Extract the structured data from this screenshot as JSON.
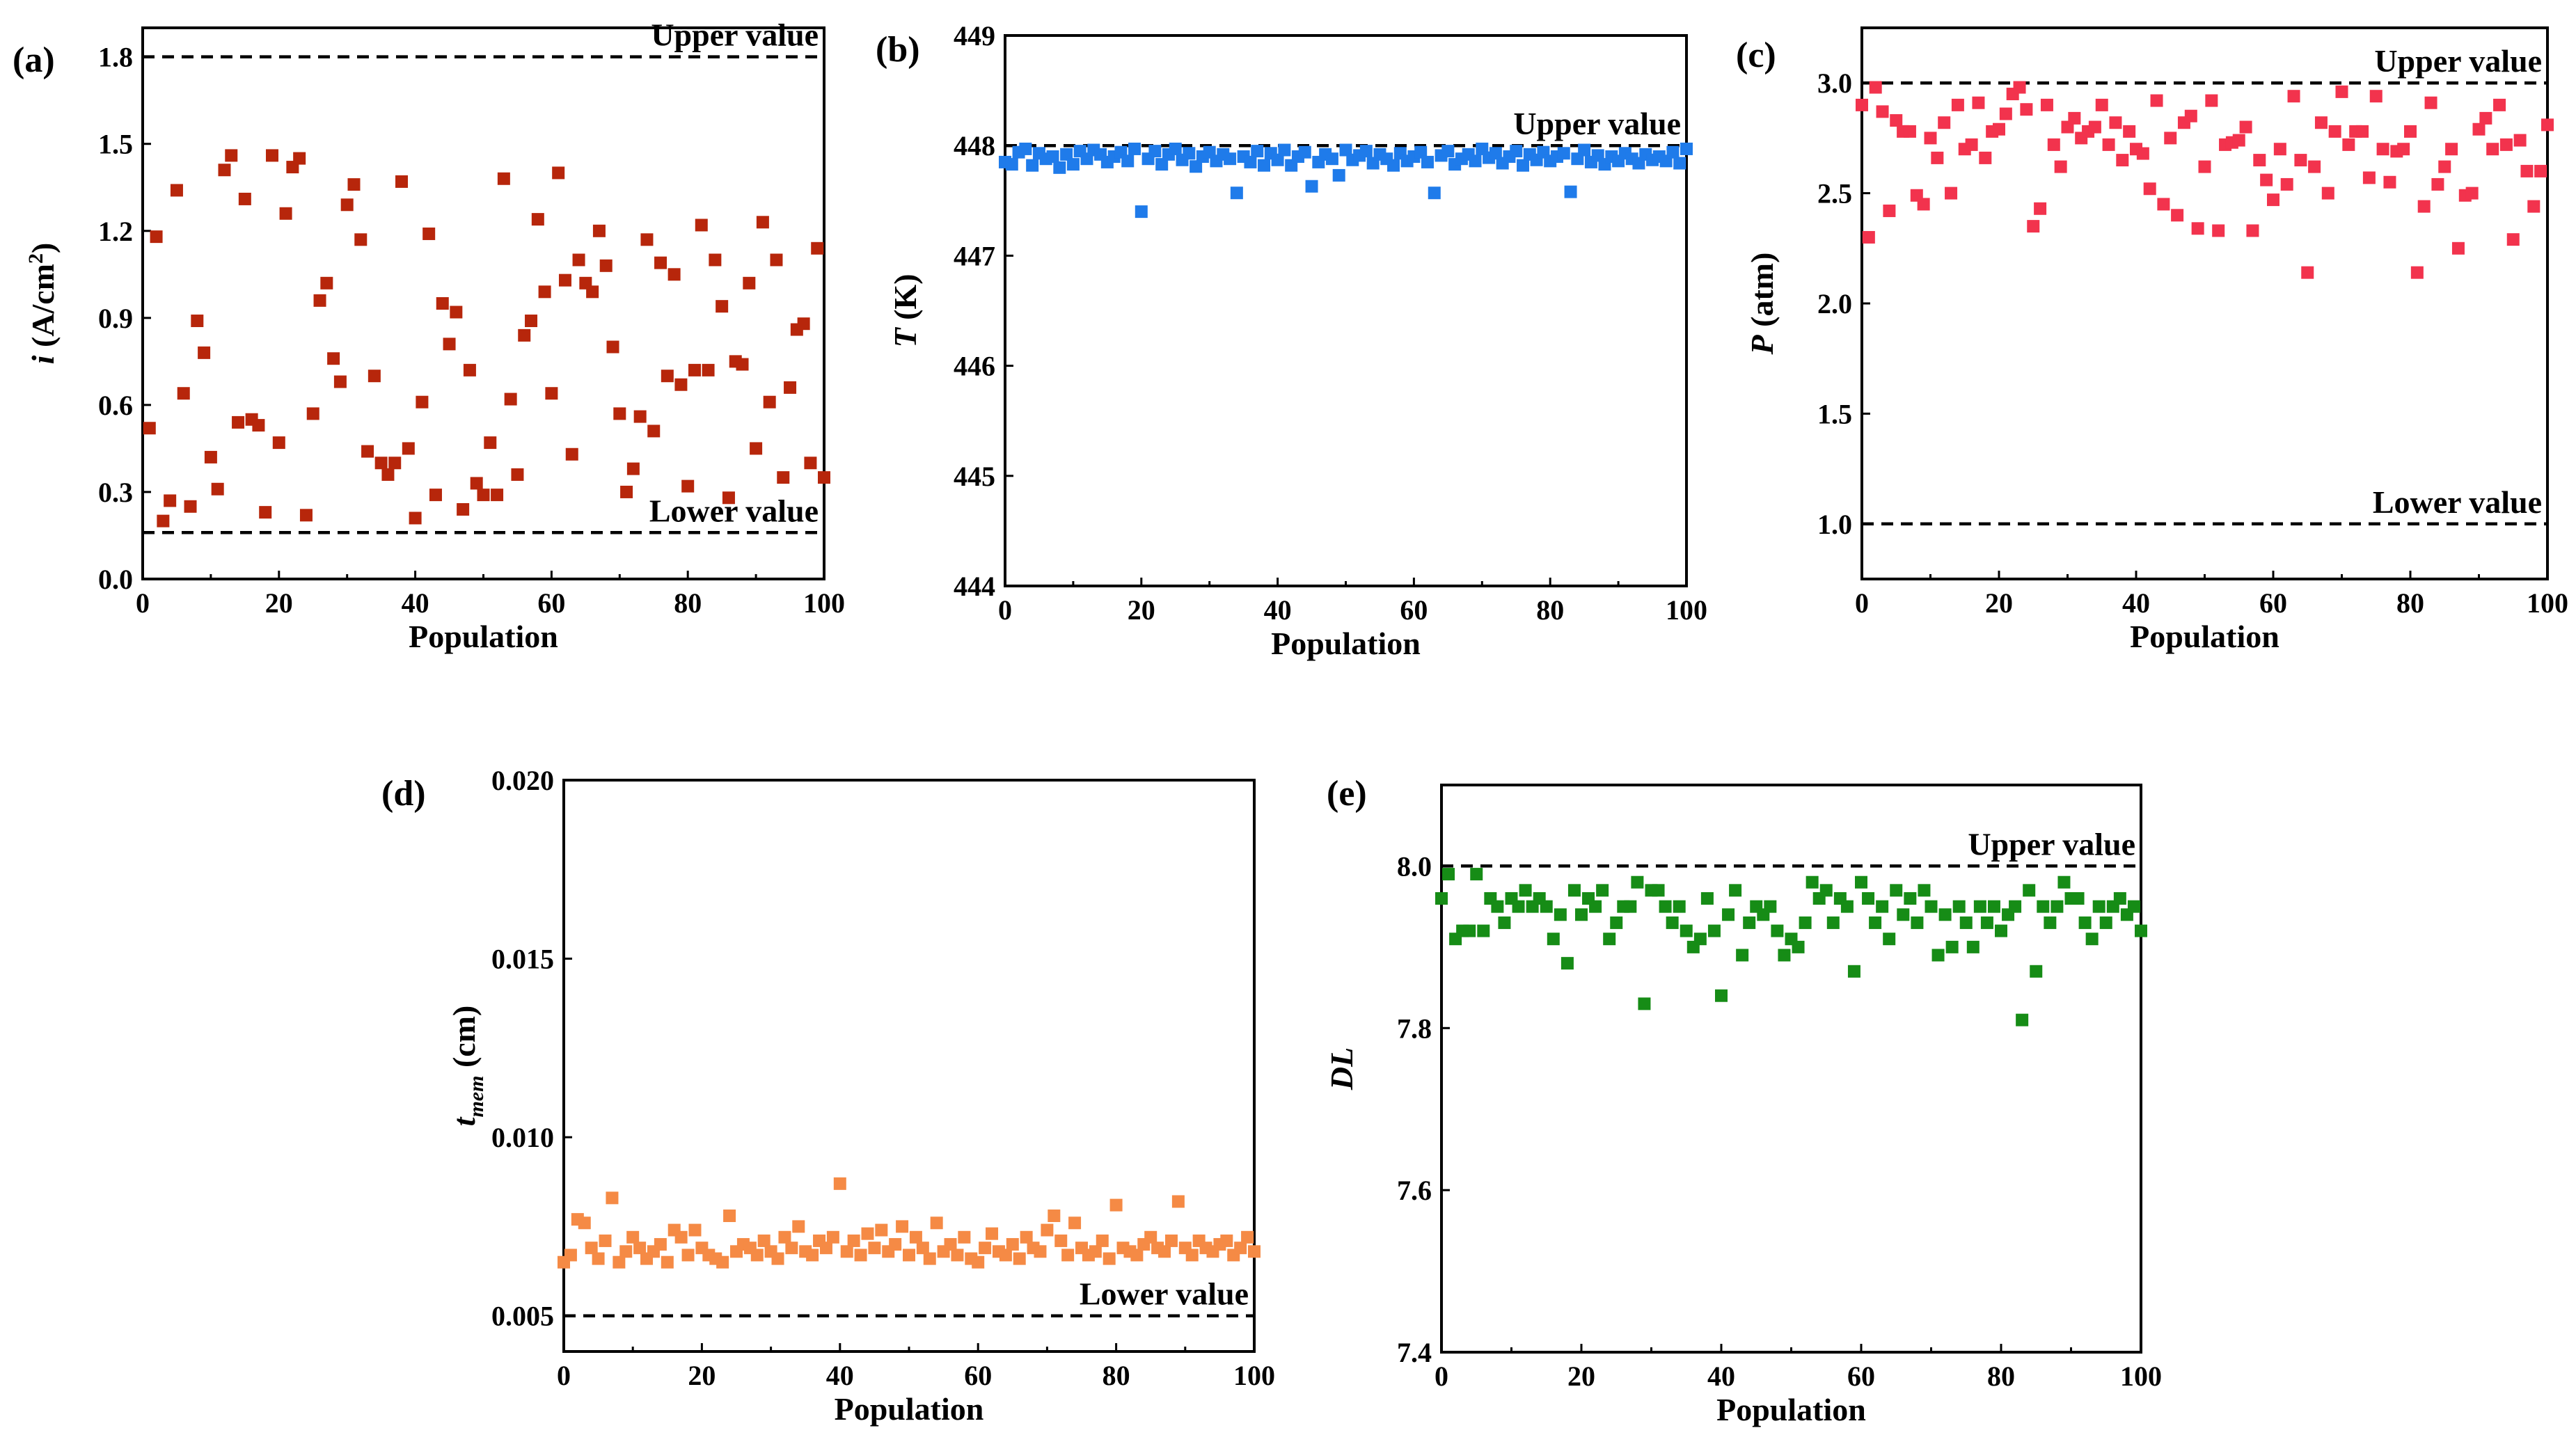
{
  "chart_data": [
    {
      "id": "a",
      "type": "scatter",
      "panel_label": "(a)",
      "xlabel": "Population",
      "ylabel_main": "i",
      "ylabel_rest": " (A/cm",
      "ylabel_sup": "2",
      "ylabel_end": ")",
      "xlim": [
        0,
        100
      ],
      "ylim": [
        0,
        1.9
      ],
      "x_ticks": [
        "0",
        "20",
        "40",
        "60",
        "80",
        "100"
      ],
      "y_ticks": [
        "0.0",
        "0.3",
        "0.6",
        "0.9",
        "1.2",
        "1.5",
        "1.8"
      ],
      "color": "#B7260B",
      "reference_lines": [
        {
          "label": "Upper value",
          "value": 1.8,
          "label_position": "above-right"
        },
        {
          "label": "Lower value",
          "value": 0.16,
          "label_position": "above-right"
        }
      ],
      "x": [
        1,
        2,
        3,
        4,
        5,
        6,
        7,
        8,
        9,
        10,
        11,
        12,
        13,
        14,
        15,
        16,
        17,
        18,
        19,
        20,
        21,
        22,
        23,
        24,
        25,
        26,
        27,
        28,
        29,
        30,
        31,
        32,
        33,
        34,
        35,
        36,
        37,
        38,
        39,
        40,
        41,
        42,
        43,
        44,
        45,
        46,
        47,
        48,
        49,
        50,
        51,
        52,
        53,
        54,
        55,
        56,
        57,
        58,
        59,
        60,
        61,
        62,
        63,
        64,
        65,
        66,
        67,
        68,
        69,
        70,
        71,
        72,
        73,
        74,
        75,
        76,
        77,
        78,
        79,
        80,
        81,
        82,
        83,
        84,
        85,
        86,
        87,
        88,
        89,
        90,
        91,
        92,
        93,
        94,
        95,
        96,
        97,
        98,
        99,
        100
      ],
      "values": [
        0.52,
        1.18,
        0.2,
        0.27,
        1.34,
        0.64,
        0.25,
        0.89,
        0.78,
        0.42,
        0.31,
        1.41,
        1.46,
        0.54,
        1.31,
        0.55,
        0.53,
        0.23,
        1.46,
        0.47,
        1.26,
        1.42,
        1.45,
        0.22,
        0.57,
        0.96,
        1.02,
        0.76,
        0.68,
        1.29,
        1.36,
        1.17,
        0.44,
        0.7,
        0.4,
        0.36,
        0.4,
        1.37,
        0.45,
        0.21,
        0.61,
        1.19,
        0.29,
        0.95,
        0.81,
        0.92,
        0.24,
        0.72,
        0.33,
        0.29,
        0.47,
        0.29,
        1.38,
        0.62,
        0.36,
        0.84,
        0.89,
        1.24,
        0.99,
        0.64,
        1.4,
        1.03,
        0.43,
        1.1,
        1.02,
        0.99,
        1.2,
        1.08,
        0.8,
        0.57,
        0.3,
        0.38,
        0.56,
        1.17,
        0.51,
        1.09,
        0.7,
        1.05,
        0.67,
        0.32,
        0.72,
        1.22,
        0.72,
        1.1,
        0.94,
        0.28,
        0.75,
        0.74,
        1.02,
        0.45,
        1.23,
        0.61,
        1.1,
        0.35,
        0.66,
        0.86,
        0.88,
        0.4,
        1.14,
        0.35
      ]
    },
    {
      "id": "b",
      "type": "scatter",
      "panel_label": "(b)",
      "xlabel": "Population",
      "ylabel_main": "T",
      "ylabel_rest": " (K)",
      "xlim": [
        0,
        100
      ],
      "ylim": [
        444,
        449
      ],
      "x_ticks": [
        "0",
        "20",
        "40",
        "60",
        "80",
        "100"
      ],
      "y_ticks": [
        "444",
        "445",
        "446",
        "447",
        "448",
        "449"
      ],
      "color": "#1F7BEA",
      "reference_lines": [
        {
          "label": "Upper value",
          "value": 448,
          "label_position": "above-right"
        }
      ],
      "x": [
        0,
        1,
        2,
        3,
        4,
        5,
        6,
        7,
        8,
        9,
        10,
        11,
        12,
        13,
        14,
        15,
        16,
        17,
        18,
        19,
        20,
        21,
        22,
        23,
        24,
        25,
        26,
        27,
        28,
        29,
        30,
        31,
        32,
        33,
        34,
        35,
        36,
        37,
        38,
        39,
        40,
        41,
        42,
        43,
        44,
        45,
        46,
        47,
        48,
        49,
        50,
        51,
        52,
        53,
        54,
        55,
        56,
        57,
        58,
        59,
        60,
        61,
        62,
        63,
        64,
        65,
        66,
        67,
        68,
        69,
        70,
        71,
        72,
        73,
        74,
        75,
        76,
        77,
        78,
        79,
        80,
        81,
        82,
        83,
        84,
        85,
        86,
        87,
        88,
        89,
        90,
        91,
        92,
        93,
        94,
        95,
        96,
        97,
        98,
        99,
        100
      ],
      "values": [
        447.85,
        447.83,
        447.94,
        447.97,
        447.82,
        447.93,
        447.88,
        447.9,
        447.8,
        447.92,
        447.83,
        447.95,
        447.88,
        447.96,
        447.92,
        447.85,
        447.9,
        447.94,
        447.86,
        447.97,
        447.4,
        447.88,
        447.95,
        447.83,
        447.92,
        447.97,
        447.87,
        447.93,
        447.81,
        447.9,
        447.94,
        447.86,
        447.92,
        447.88,
        447.57,
        447.9,
        447.85,
        447.95,
        447.82,
        447.93,
        447.87,
        447.96,
        447.82,
        447.9,
        447.94,
        447.63,
        447.85,
        447.92,
        447.88,
        447.73,
        447.96,
        447.87,
        447.91,
        447.95,
        447.84,
        447.92,
        447.88,
        447.82,
        447.93,
        447.86,
        447.9,
        447.94,
        447.85,
        447.57,
        447.91,
        447.95,
        447.83,
        447.88,
        447.92,
        447.86,
        447.97,
        447.89,
        447.93,
        447.84,
        447.9,
        447.95,
        447.82,
        447.92,
        447.87,
        447.94,
        447.86,
        447.9,
        447.93,
        447.58,
        447.88,
        447.96,
        447.85,
        447.91,
        447.83,
        447.9,
        447.86,
        447.93,
        447.88,
        447.84,
        447.92,
        447.87,
        447.9,
        447.86,
        447.94,
        447.84,
        447.97
      ]
    },
    {
      "id": "c",
      "type": "scatter",
      "panel_label": "(c)",
      "xlabel": "Population",
      "ylabel_main": "P",
      "ylabel_rest": " (atm)",
      "xlim": [
        0,
        100
      ],
      "ylim": [
        0.75,
        3.25
      ],
      "x_ticks": [
        "0",
        "20",
        "40",
        "60",
        "80",
        "100"
      ],
      "y_ticks": [
        "1.0",
        "1.5",
        "2.0",
        "2.5",
        "3.0"
      ],
      "color": "#F2334D",
      "reference_lines": [
        {
          "label": "Upper value",
          "value": 3.0,
          "label_position": "above-right"
        },
        {
          "label": "Lower value",
          "value": 1.0,
          "label_position": "above-right"
        }
      ],
      "x": [
        0,
        1,
        2,
        3,
        4,
        5,
        6,
        7,
        8,
        9,
        10,
        11,
        12,
        13,
        14,
        15,
        16,
        17,
        18,
        19,
        20,
        21,
        22,
        23,
        24,
        25,
        26,
        27,
        28,
        29,
        30,
        31,
        32,
        33,
        34,
        35,
        36,
        37,
        38,
        39,
        40,
        41,
        42,
        43,
        44,
        45,
        46,
        47,
        48,
        49,
        50,
        51,
        52,
        53,
        54,
        55,
        56,
        57,
        58,
        59,
        60,
        61,
        62,
        63,
        64,
        65,
        66,
        67,
        68,
        69,
        70,
        71,
        72,
        73,
        74,
        75,
        76,
        77,
        78,
        79,
        80,
        81,
        82,
        83,
        84,
        85,
        86,
        87,
        88,
        89,
        90,
        91,
        92,
        93,
        94,
        95,
        96,
        97,
        98,
        99,
        100
      ],
      "values": [
        2.9,
        2.3,
        2.98,
        2.87,
        2.42,
        2.83,
        2.78,
        2.78,
        2.49,
        2.45,
        2.75,
        2.66,
        2.82,
        2.5,
        2.9,
        2.7,
        2.72,
        2.91,
        2.66,
        2.78,
        2.79,
        2.86,
        2.95,
        2.98,
        2.88,
        2.35,
        2.43,
        2.9,
        2.72,
        2.62,
        2.8,
        2.84,
        2.75,
        2.78,
        2.8,
        2.9,
        2.72,
        2.82,
        2.65,
        2.78,
        2.7,
        2.68,
        2.52,
        2.92,
        2.45,
        2.75,
        2.4,
        2.82,
        2.85,
        2.34,
        2.62,
        2.92,
        2.33,
        2.72,
        2.73,
        2.74,
        2.8,
        2.33,
        2.65,
        2.56,
        2.47,
        2.7,
        2.54,
        2.94,
        2.65,
        2.14,
        2.62,
        2.82,
        2.5,
        2.78,
        2.96,
        2.72,
        2.78,
        2.78,
        2.57,
        2.94,
        2.7,
        2.55,
        2.69,
        2.7,
        2.78,
        2.14,
        2.44,
        2.91,
        2.54,
        2.62,
        2.7,
        2.25,
        2.49,
        2.5,
        2.79,
        2.84,
        2.7,
        2.9,
        2.72,
        2.29,
        2.74,
        2.6,
        2.44,
        2.6,
        2.81
      ]
    },
    {
      "id": "d",
      "type": "scatter",
      "panel_label": "(d)",
      "xlabel": "Population",
      "ylabel_main": "t",
      "ylabel_sub": "mem",
      "ylabel_rest": " (cm)",
      "xlim": [
        0,
        100
      ],
      "ylim": [
        0.004,
        0.02
      ],
      "x_ticks": [
        "0",
        "20",
        "40",
        "60",
        "80",
        "100"
      ],
      "y_ticks": [
        "0.005",
        "0.010",
        "0.015",
        "0.020"
      ],
      "color": "#F58A45",
      "reference_lines": [
        {
          "label": "Lower value",
          "value": 0.005,
          "label_position": "above-right"
        }
      ],
      "x": [
        0,
        1,
        2,
        3,
        4,
        5,
        6,
        7,
        8,
        9,
        10,
        11,
        12,
        13,
        14,
        15,
        16,
        17,
        18,
        19,
        20,
        21,
        22,
        23,
        24,
        25,
        26,
        27,
        28,
        29,
        30,
        31,
        32,
        33,
        34,
        35,
        36,
        37,
        38,
        39,
        40,
        41,
        42,
        43,
        44,
        45,
        46,
        47,
        48,
        49,
        50,
        51,
        52,
        53,
        54,
        55,
        56,
        57,
        58,
        59,
        60,
        61,
        62,
        63,
        64,
        65,
        66,
        67,
        68,
        69,
        70,
        71,
        72,
        73,
        74,
        75,
        76,
        77,
        78,
        79,
        80,
        81,
        82,
        83,
        84,
        85,
        86,
        87,
        88,
        89,
        90,
        91,
        92,
        93,
        94,
        95,
        96,
        97,
        98,
        99,
        100
      ],
      "values": [
        0.0065,
        0.0067,
        0.0077,
        0.0076,
        0.0069,
        0.0066,
        0.0071,
        0.0083,
        0.0065,
        0.0068,
        0.0072,
        0.0069,
        0.0066,
        0.0068,
        0.007,
        0.0065,
        0.0074,
        0.0072,
        0.0067,
        0.0074,
        0.0069,
        0.0067,
        0.0066,
        0.0065,
        0.0078,
        0.0068,
        0.007,
        0.0069,
        0.0067,
        0.0071,
        0.0068,
        0.0066,
        0.0072,
        0.0069,
        0.0075,
        0.0068,
        0.0067,
        0.0071,
        0.0069,
        0.0072,
        0.0087,
        0.0068,
        0.0071,
        0.0067,
        0.0073,
        0.0069,
        0.0074,
        0.0068,
        0.007,
        0.0075,
        0.0067,
        0.0072,
        0.0069,
        0.0066,
        0.0076,
        0.0068,
        0.007,
        0.0067,
        0.0072,
        0.0066,
        0.0065,
        0.0069,
        0.0073,
        0.0068,
        0.0067,
        0.007,
        0.0066,
        0.0072,
        0.0069,
        0.0068,
        0.0074,
        0.0078,
        0.0071,
        0.0067,
        0.0076,
        0.0069,
        0.0067,
        0.0068,
        0.0071,
        0.0066,
        0.0081,
        0.0069,
        0.0068,
        0.0067,
        0.007,
        0.0072,
        0.0069,
        0.0068,
        0.0071,
        0.0082,
        0.0069,
        0.0067,
        0.0071,
        0.0069,
        0.0068,
        0.007,
        0.0071,
        0.0067,
        0.0069,
        0.0072,
        0.0068
      ]
    },
    {
      "id": "e",
      "type": "scatter",
      "panel_label": "(e)",
      "xlabel": "Population",
      "ylabel_main": "DL",
      "ylabel_rest": "",
      "xlim": [
        0,
        100
      ],
      "ylim": [
        7.4,
        8.1
      ],
      "x_ticks": [
        "0",
        "20",
        "40",
        "60",
        "80",
        "100"
      ],
      "y_ticks": [
        "7.4",
        "7.6",
        "7.8",
        "8.0"
      ],
      "color": "#168C16",
      "reference_lines": [
        {
          "label": "Upper value",
          "value": 8.0,
          "label_position": "above-right"
        }
      ],
      "x": [
        0,
        1,
        2,
        3,
        4,
        5,
        6,
        7,
        8,
        9,
        10,
        11,
        12,
        13,
        14,
        15,
        16,
        17,
        18,
        19,
        20,
        21,
        22,
        23,
        24,
        25,
        26,
        27,
        28,
        29,
        30,
        31,
        32,
        33,
        34,
        35,
        36,
        37,
        38,
        39,
        40,
        41,
        42,
        43,
        44,
        45,
        46,
        47,
        48,
        49,
        50,
        51,
        52,
        53,
        54,
        55,
        56,
        57,
        58,
        59,
        60,
        61,
        62,
        63,
        64,
        65,
        66,
        67,
        68,
        69,
        70,
        71,
        72,
        73,
        74,
        75,
        76,
        77,
        78,
        79,
        80,
        81,
        82,
        83,
        84,
        85,
        86,
        87,
        88,
        89,
        90,
        91,
        92,
        93,
        94,
        95,
        96,
        97,
        98,
        99,
        100
      ],
      "values": [
        7.96,
        7.99,
        7.91,
        7.92,
        7.92,
        7.99,
        7.92,
        7.96,
        7.95,
        7.93,
        7.96,
        7.95,
        7.97,
        7.95,
        7.96,
        7.95,
        7.91,
        7.94,
        7.88,
        7.97,
        7.94,
        7.96,
        7.95,
        7.97,
        7.91,
        7.93,
        7.95,
        7.95,
        7.98,
        7.83,
        7.97,
        7.97,
        7.95,
        7.93,
        7.95,
        7.92,
        7.9,
        7.91,
        7.96,
        7.92,
        7.84,
        7.94,
        7.97,
        7.89,
        7.93,
        7.95,
        7.94,
        7.95,
        7.92,
        7.89,
        7.91,
        7.9,
        7.93,
        7.98,
        7.96,
        7.97,
        7.93,
        7.96,
        7.95,
        7.87,
        7.98,
        7.96,
        7.93,
        7.95,
        7.91,
        7.97,
        7.94,
        7.96,
        7.93,
        7.97,
        7.95,
        7.89,
        7.94,
        7.9,
        7.95,
        7.93,
        7.9,
        7.95,
        7.93,
        7.95,
        7.92,
        7.94,
        7.95,
        7.81,
        7.97,
        7.87,
        7.95,
        7.93,
        7.95,
        7.98,
        7.96,
        7.96,
        7.93,
        7.91,
        7.95,
        7.93,
        7.95,
        7.96,
        7.94,
        7.95,
        7.92
      ]
    }
  ]
}
